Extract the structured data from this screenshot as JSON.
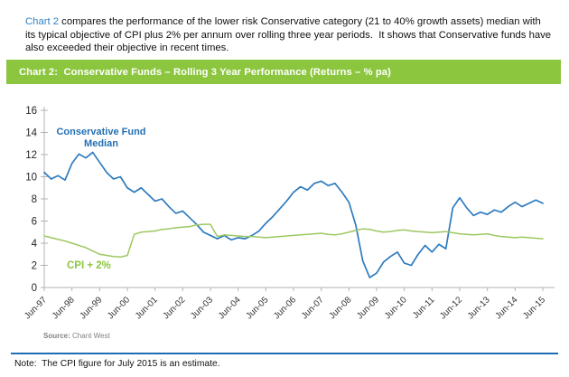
{
  "intro": {
    "lead": "Chart 2",
    "text": " compares the performance of the lower risk Conservative category (21 to 40% growth assets) median with its typical objective of CPI plus 2% per annum over rolling three year periods.  It shows that Conservative funds have also exceeded their objective in recent times."
  },
  "banner": {
    "title": "Chart 2:  Conservative Funds – Rolling 3 Year Performance (Returns – % pa)",
    "bg_color": "#8cc63f",
    "text_color": "#ffffff"
  },
  "chart_data": {
    "type": "line",
    "title": "Conservative Funds - Rolling 3 Year Performance (Returns - % pa)",
    "frequency": "quarterly",
    "x_start": "Jun-97",
    "x_end": "Jun-15",
    "x_tick_labels": [
      "Jun-97",
      "Jun-98",
      "Jun-99",
      "Jun-00",
      "Jun-01",
      "Jun-02",
      "Jun-03",
      "Jun-04",
      "Jun-05",
      "Jun-06",
      "Jun-07",
      "Jun-08",
      "Jun-09",
      "Jun-10",
      "Jun-11",
      "Jun-12",
      "Jun-13",
      "Jun-14",
      "Jun-15"
    ],
    "y_ticks": [
      0,
      2,
      4,
      6,
      8,
      10,
      12,
      14,
      16
    ],
    "ylim": [
      0,
      16
    ],
    "grid": false,
    "legend_position": "inline-labels",
    "axis_color": "#b3b3b3",
    "tick_label_color": "#262626",
    "series": [
      {
        "name": "Conservative Fund Median",
        "label_line1": "Conservative Fund",
        "label_line2": "Median",
        "color": "#2f7bbf",
        "values": [
          10.4,
          9.8,
          10.1,
          9.7,
          11.2,
          12.05,
          11.7,
          12.2,
          11.3,
          10.4,
          9.8,
          10.0,
          9.0,
          8.6,
          9.0,
          8.4,
          7.8,
          8.0,
          7.3,
          6.7,
          6.9,
          6.3,
          5.7,
          5.0,
          4.7,
          4.4,
          4.7,
          4.3,
          4.5,
          4.4,
          4.7,
          5.1,
          5.8,
          6.4,
          7.1,
          7.8,
          8.6,
          9.1,
          8.8,
          9.4,
          9.6,
          9.2,
          9.4,
          8.6,
          7.7,
          5.6,
          2.4,
          0.9,
          1.3,
          2.3,
          2.8,
          3.2,
          2.2,
          2.0,
          3.0,
          3.8,
          3.2,
          3.9,
          3.5,
          7.2,
          8.1,
          7.2,
          6.5,
          6.8,
          6.6,
          7.0,
          6.8,
          7.3,
          7.7,
          7.3,
          7.6,
          7.9,
          7.6
        ]
      },
      {
        "name": "CPI + 2%",
        "label": "CPI + 2%",
        "color": "#9cc861",
        "values": [
          4.65,
          4.5,
          4.35,
          4.2,
          4.0,
          3.8,
          3.6,
          3.3,
          3.0,
          2.9,
          2.8,
          2.75,
          2.9,
          4.8,
          5.0,
          5.05,
          5.1,
          5.25,
          5.3,
          5.4,
          5.45,
          5.5,
          5.65,
          5.7,
          5.7,
          4.6,
          4.75,
          4.7,
          4.65,
          4.6,
          4.6,
          4.55,
          4.5,
          4.55,
          4.6,
          4.65,
          4.7,
          4.75,
          4.8,
          4.85,
          4.9,
          4.8,
          4.75,
          4.85,
          5.0,
          5.15,
          5.3,
          5.25,
          5.1,
          5.0,
          5.05,
          5.15,
          5.2,
          5.1,
          5.05,
          5.0,
          4.95,
          5.0,
          5.05,
          4.95,
          4.85,
          4.8,
          4.75,
          4.8,
          4.85,
          4.7,
          4.6,
          4.55,
          4.5,
          4.55,
          4.5,
          4.45,
          4.4
        ]
      }
    ]
  },
  "source": {
    "label": "Source:",
    "text": " Chant West"
  },
  "note": {
    "text": "Note:  The CPI figure for July 2015 is an estimate."
  }
}
